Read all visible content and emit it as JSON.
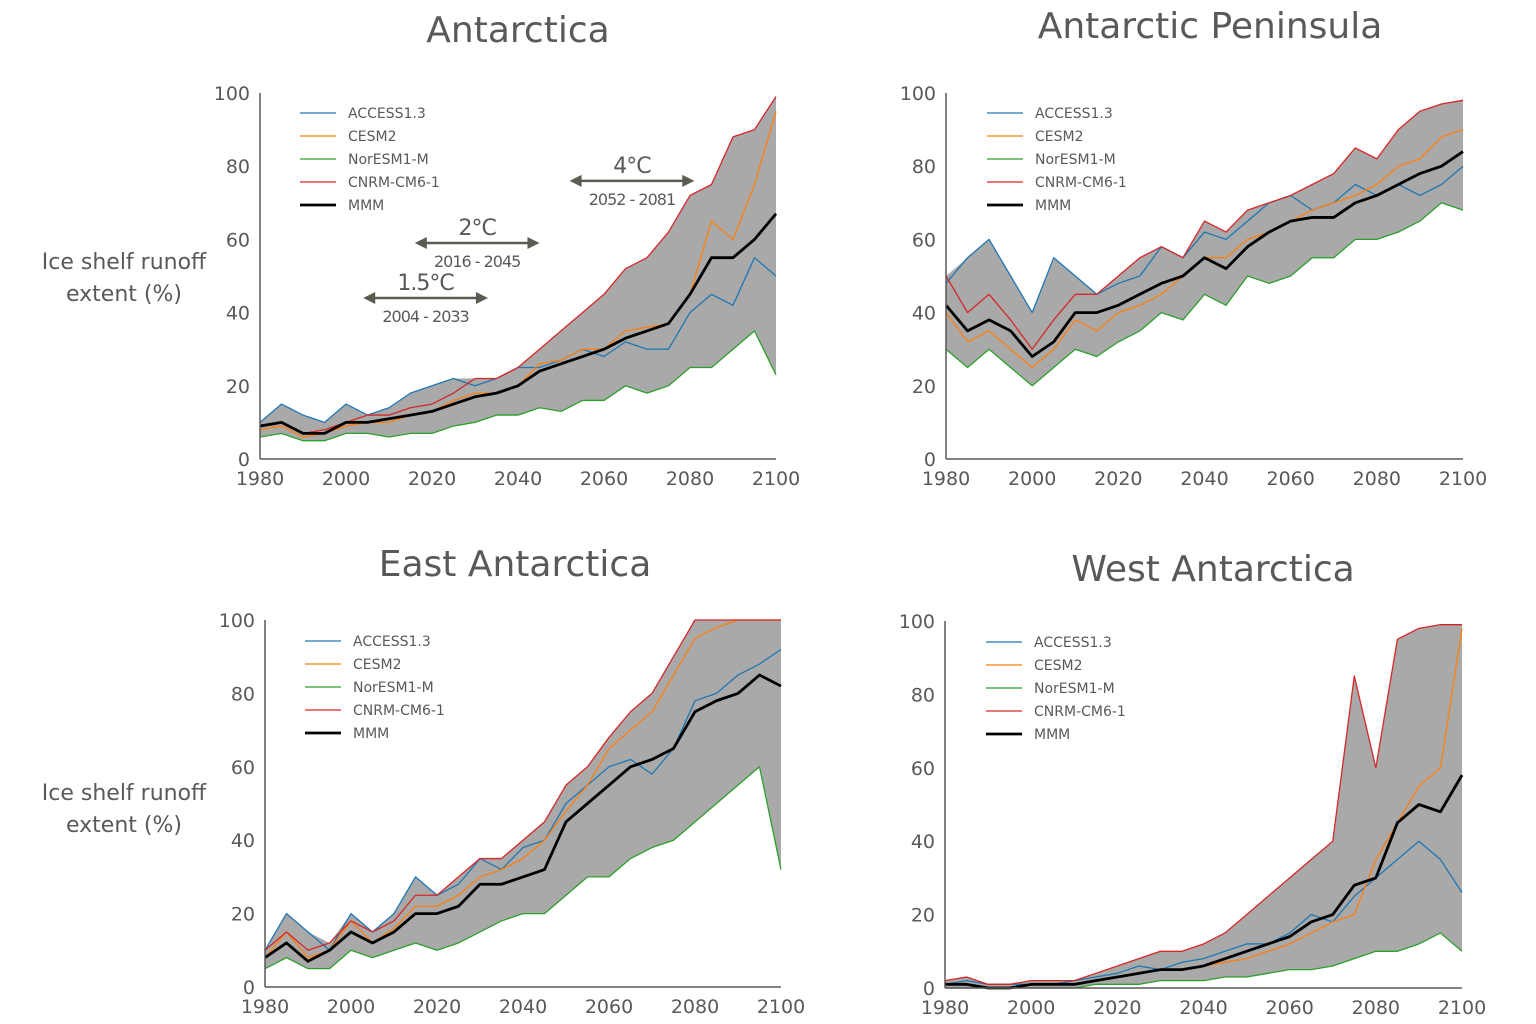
{
  "colors": {
    "ACCESS1.3": "#1f77b4",
    "CESM2": "#ff7f0e",
    "NorESM1-M": "#2ca02c",
    "CNRM-CM6-1": "#d62728",
    "MMM": "#000000",
    "envelope": "#a9a9a9",
    "axis": "#595959",
    "text": "#595959"
  },
  "chart_data": [
    {
      "type": "line",
      "title": "Antarctica",
      "ylabel": [
        "Ice shelf runoff",
        "extent (%)"
      ],
      "xlabel": "",
      "xlim": [
        1980,
        2100
      ],
      "ylim": [
        0,
        100
      ],
      "xticks": [
        1980,
        2000,
        2020,
        2040,
        2060,
        2080,
        2100
      ],
      "yticks": [
        0,
        20,
        40,
        60,
        80,
        100
      ],
      "grid": false,
      "legend": "top-left",
      "envelope": "shaded range between model min and max",
      "x": [
        1980,
        1985,
        1990,
        1995,
        2000,
        2005,
        2010,
        2015,
        2020,
        2025,
        2030,
        2035,
        2040,
        2045,
        2050,
        2055,
        2060,
        2065,
        2070,
        2075,
        2080,
        2085,
        2090,
        2095,
        2100
      ],
      "series": [
        {
          "name": "ACCESS1.3",
          "values": [
            10,
            15,
            12,
            10,
            15,
            12,
            14,
            18,
            20,
            22,
            20,
            22,
            25,
            25,
            27,
            30,
            28,
            32,
            30,
            30,
            40,
            45,
            42,
            55,
            50
          ]
        },
        {
          "name": "CESM2",
          "values": [
            8,
            9,
            6,
            7,
            9,
            10,
            10,
            12,
            13,
            16,
            18,
            18,
            20,
            26,
            27,
            30,
            30,
            35,
            36,
            37,
            45,
            65,
            60,
            75,
            95
          ]
        },
        {
          "name": "NorESM1-M",
          "values": [
            6,
            7,
            5,
            5,
            7,
            7,
            6,
            7,
            7,
            9,
            10,
            12,
            12,
            14,
            13,
            16,
            16,
            20,
            18,
            20,
            25,
            25,
            30,
            35,
            23
          ]
        },
        {
          "name": "CNRM-CM6-1",
          "values": [
            9,
            10,
            7,
            8,
            10,
            12,
            12,
            14,
            15,
            18,
            22,
            22,
            25,
            30,
            35,
            40,
            45,
            52,
            55,
            62,
            72,
            75,
            88,
            90,
            99
          ]
        },
        {
          "name": "MMM",
          "values": [
            9,
            10,
            7,
            7,
            10,
            10,
            11,
            12,
            13,
            15,
            17,
            18,
            20,
            24,
            26,
            28,
            30,
            33,
            35,
            37,
            45,
            55,
            55,
            60,
            67
          ]
        }
      ],
      "annotations": [
        {
          "label": "1.5°C",
          "range_label": "2004 - 2033",
          "from": 2004,
          "to": 2033,
          "y": 44
        },
        {
          "label": "2°C",
          "range_label": "2016 - 2045",
          "from": 2016,
          "to": 2045,
          "y": 59
        },
        {
          "label": "4°C",
          "range_label": "2052 - 2081",
          "from": 2052,
          "to": 2081,
          "y": 76
        }
      ]
    },
    {
      "type": "line",
      "title": "Antarctic Peninsula",
      "ylabel": [],
      "xlabel": "",
      "xlim": [
        1980,
        2100
      ],
      "ylim": [
        0,
        100
      ],
      "xticks": [
        1980,
        2000,
        2020,
        2040,
        2060,
        2080,
        2100
      ],
      "yticks": [
        0,
        20,
        40,
        60,
        80,
        100
      ],
      "grid": false,
      "legend": "top-left",
      "x": [
        1980,
        1985,
        1990,
        1995,
        2000,
        2005,
        2010,
        2015,
        2020,
        2025,
        2030,
        2035,
        2040,
        2045,
        2050,
        2055,
        2060,
        2065,
        2070,
        2075,
        2080,
        2085,
        2090,
        2095,
        2100
      ],
      "series": [
        {
          "name": "ACCESS1.3",
          "values": [
            48,
            55,
            60,
            50,
            40,
            55,
            50,
            45,
            48,
            50,
            58,
            55,
            62,
            60,
            65,
            70,
            72,
            68,
            70,
            75,
            72,
            75,
            72,
            75,
            80
          ]
        },
        {
          "name": "CESM2",
          "values": [
            40,
            32,
            35,
            30,
            25,
            30,
            38,
            35,
            40,
            42,
            45,
            50,
            55,
            55,
            60,
            62,
            65,
            68,
            70,
            72,
            75,
            80,
            82,
            88,
            90
          ]
        },
        {
          "name": "NorESM1-M",
          "values": [
            30,
            25,
            30,
            25,
            20,
            25,
            30,
            28,
            32,
            35,
            40,
            38,
            45,
            42,
            50,
            48,
            50,
            55,
            55,
            60,
            60,
            62,
            65,
            70,
            68
          ]
        },
        {
          "name": "CNRM-CM6-1",
          "values": [
            50,
            40,
            45,
            38,
            30,
            38,
            45,
            45,
            50,
            55,
            58,
            55,
            65,
            62,
            68,
            70,
            72,
            75,
            78,
            85,
            82,
            90,
            95,
            97,
            98
          ]
        },
        {
          "name": "MMM",
          "values": [
            42,
            35,
            38,
            35,
            28,
            32,
            40,
            40,
            42,
            45,
            48,
            50,
            55,
            52,
            58,
            62,
            65,
            66,
            66,
            70,
            72,
            75,
            78,
            80,
            84
          ]
        }
      ]
    },
    {
      "type": "line",
      "title": "East Antarctica",
      "ylabel": [
        "Ice shelf runoff",
        "extent (%)"
      ],
      "xlabel": "",
      "xlim": [
        1980,
        2100
      ],
      "ylim": [
        0,
        100
      ],
      "xticks": [
        1980,
        2000,
        2020,
        2040,
        2060,
        2080,
        2100
      ],
      "yticks": [
        0,
        20,
        40,
        60,
        80,
        100
      ],
      "grid": false,
      "legend": "top-left",
      "x": [
        1980,
        1985,
        1990,
        1995,
        2000,
        2005,
        2010,
        2015,
        2020,
        2025,
        2030,
        2035,
        2040,
        2045,
        2050,
        2055,
        2060,
        2065,
        2070,
        2075,
        2080,
        2085,
        2090,
        2095,
        2100
      ],
      "series": [
        {
          "name": "ACCESS1.3",
          "values": [
            10,
            20,
            15,
            10,
            20,
            15,
            20,
            30,
            25,
            28,
            35,
            32,
            38,
            40,
            50,
            55,
            60,
            62,
            58,
            65,
            78,
            80,
            85,
            88,
            92
          ]
        },
        {
          "name": "CESM2",
          "values": [
            8,
            15,
            8,
            10,
            18,
            12,
            16,
            22,
            22,
            25,
            30,
            32,
            35,
            40,
            48,
            55,
            65,
            70,
            75,
            85,
            95,
            98,
            100,
            100,
            100
          ]
        },
        {
          "name": "NorESM1-M",
          "values": [
            5,
            8,
            5,
            5,
            10,
            8,
            10,
            12,
            10,
            12,
            15,
            18,
            20,
            20,
            25,
            30,
            30,
            35,
            38,
            40,
            45,
            50,
            55,
            60,
            32
          ]
        },
        {
          "name": "CNRM-CM6-1",
          "values": [
            10,
            15,
            10,
            12,
            18,
            15,
            18,
            25,
            25,
            30,
            35,
            35,
            40,
            45,
            55,
            60,
            68,
            75,
            80,
            90,
            100,
            100,
            100,
            100,
            100
          ]
        },
        {
          "name": "MMM",
          "values": [
            8,
            12,
            7,
            10,
            15,
            12,
            15,
            20,
            20,
            22,
            28,
            28,
            30,
            32,
            45,
            50,
            55,
            60,
            62,
            65,
            75,
            78,
            80,
            85,
            82
          ]
        }
      ]
    },
    {
      "type": "line",
      "title": "West Antarctica",
      "ylabel": [],
      "xlabel": "",
      "xlim": [
        1980,
        2100
      ],
      "ylim": [
        0,
        100
      ],
      "xticks": [
        1980,
        2000,
        2020,
        2040,
        2060,
        2080,
        2100
      ],
      "yticks": [
        0,
        20,
        40,
        60,
        80,
        100
      ],
      "grid": false,
      "legend": "top-left",
      "x": [
        1980,
        1985,
        1990,
        1995,
        2000,
        2005,
        2010,
        2015,
        2020,
        2025,
        2030,
        2035,
        2040,
        2045,
        2050,
        2055,
        2060,
        2065,
        2070,
        2075,
        2080,
        2085,
        2090,
        2095,
        2100
      ],
      "series": [
        {
          "name": "ACCESS1.3",
          "values": [
            1,
            2,
            1,
            1,
            1,
            1,
            2,
            3,
            4,
            6,
            5,
            7,
            8,
            10,
            12,
            12,
            15,
            20,
            18,
            25,
            30,
            35,
            40,
            35,
            26
          ]
        },
        {
          "name": "CESM2",
          "values": [
            1,
            1,
            0,
            0,
            1,
            1,
            1,
            2,
            3,
            4,
            5,
            5,
            6,
            7,
            8,
            10,
            12,
            15,
            18,
            20,
            35,
            45,
            55,
            60,
            98
          ]
        },
        {
          "name": "NorESM1-M",
          "values": [
            0,
            0,
            0,
            0,
            0,
            0,
            0,
            1,
            1,
            1,
            2,
            2,
            2,
            3,
            3,
            4,
            5,
            5,
            6,
            8,
            10,
            10,
            12,
            15,
            10
          ]
        },
        {
          "name": "CNRM-CM6-1",
          "values": [
            2,
            3,
            1,
            1,
            2,
            2,
            2,
            4,
            6,
            8,
            10,
            10,
            12,
            15,
            20,
            25,
            30,
            35,
            40,
            85,
            60,
            95,
            98,
            99,
            99
          ]
        },
        {
          "name": "MMM",
          "values": [
            1,
            1,
            0,
            0,
            1,
            1,
            1,
            2,
            3,
            4,
            5,
            5,
            6,
            8,
            10,
            12,
            14,
            18,
            20,
            28,
            30,
            45,
            50,
            48,
            58
          ]
        }
      ]
    }
  ]
}
